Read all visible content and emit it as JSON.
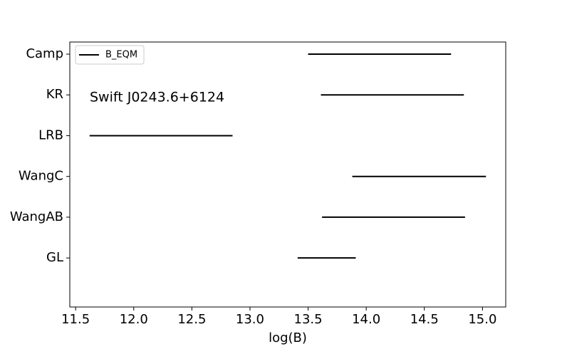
{
  "chart_data": {
    "type": "interval",
    "categories": [
      "Camp",
      "KR",
      "LRB",
      "WangC",
      "WangAB",
      "GL"
    ],
    "series": [
      {
        "name": "B_EQM",
        "color": "#000000",
        "low": [
          13.5,
          13.61,
          11.62,
          13.88,
          13.62,
          13.41
        ],
        "high": [
          14.73,
          14.84,
          12.85,
          15.03,
          14.85,
          13.91
        ]
      }
    ],
    "xlabel": "log(B)",
    "annotation": "Swift J0243.6+6124",
    "xlim": [
      11.45,
      15.2
    ],
    "xticks": [
      11.5,
      {
        "value": 12,
        "label": "12.0"
      },
      12.5,
      {
        "value": 13,
        "label": "13.0"
      },
      13.5,
      {
        "value": 14,
        "label": "14.0"
      },
      14.5,
      {
        "value": 15,
        "label": "15.0"
      }
    ],
    "legend": "upper left"
  }
}
